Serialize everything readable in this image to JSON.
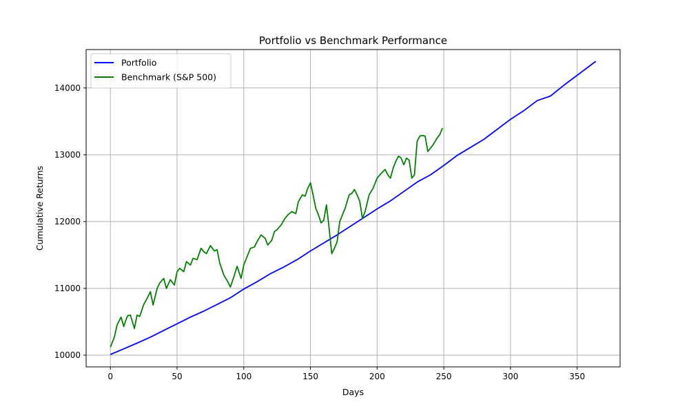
{
  "chart_data": {
    "type": "line",
    "title": "Portfolio vs Benchmark Performance",
    "xlabel": "Days",
    "ylabel": "Cumulative Returns",
    "xlim": [
      -18.2,
      382.2
    ],
    "ylim": [
      9825,
      14575
    ],
    "xticks": [
      0,
      50,
      100,
      150,
      200,
      250,
      300,
      350
    ],
    "yticks": [
      10000,
      11000,
      12000,
      13000,
      14000
    ],
    "grid": true,
    "legend_position": "top-left",
    "series": [
      {
        "name": "Portfolio",
        "color": "#0000ff",
        "x": [
          0,
          10,
          20,
          30,
          40,
          50,
          60,
          70,
          80,
          90,
          100,
          110,
          120,
          130,
          140,
          150,
          160,
          170,
          180,
          190,
          200,
          210,
          220,
          230,
          240,
          250,
          260,
          270,
          280,
          290,
          300,
          310,
          320,
          330,
          340,
          350,
          364
        ],
        "y": [
          10010,
          10095,
          10180,
          10270,
          10370,
          10470,
          10570,
          10660,
          10760,
          10860,
          10990,
          11100,
          11220,
          11320,
          11430,
          11560,
          11680,
          11800,
          11930,
          12060,
          12190,
          12310,
          12450,
          12590,
          12700,
          12840,
          12990,
          13110,
          13230,
          13380,
          13530,
          13660,
          13810,
          13880,
          14040,
          14190,
          14400
        ]
      },
      {
        "name": "Benchmark (S&P 500)",
        "color": "#008000",
        "x": [
          0,
          3,
          5,
          8,
          10,
          12,
          13,
          15,
          18,
          20,
          22,
          25,
          27,
          30,
          32,
          35,
          37,
          40,
          42,
          45,
          48,
          50,
          52,
          55,
          57,
          60,
          62,
          65,
          68,
          70,
          72,
          75,
          78,
          80,
          82,
          85,
          88,
          90,
          93,
          95,
          98,
          100,
          103,
          105,
          108,
          110,
          113,
          116,
          118,
          121,
          123,
          125,
          128,
          131,
          133,
          136,
          139,
          141,
          144,
          146,
          148,
          150,
          152,
          154,
          156,
          158,
          160,
          162,
          164,
          166,
          168,
          170,
          172,
          174,
          176,
          179,
          181,
          183,
          185,
          187,
          189,
          191,
          194,
          197,
          200,
          203,
          206,
          208,
          210,
          212,
          214,
          216,
          218,
          220,
          222,
          224,
          226,
          228,
          230,
          232,
          234,
          236,
          238,
          240,
          242,
          245,
          247,
          249
        ],
        "y": [
          10120,
          10270,
          10450,
          10570,
          10430,
          10550,
          10590,
          10600,
          10400,
          10600,
          10580,
          10760,
          10830,
          10950,
          10750,
          11000,
          11080,
          11150,
          11000,
          11130,
          11050,
          11250,
          11300,
          11250,
          11400,
          11350,
          11450,
          11430,
          11600,
          11550,
          11520,
          11640,
          11560,
          11580,
          11380,
          11200,
          11100,
          11020,
          11200,
          11330,
          11150,
          11350,
          11500,
          11600,
          11620,
          11700,
          11800,
          11750,
          11650,
          11720,
          11850,
          11880,
          11950,
          12050,
          12100,
          12150,
          12120,
          12300,
          12400,
          12380,
          12500,
          12580,
          12400,
          12200,
          12100,
          11980,
          12020,
          12250,
          11900,
          11520,
          11600,
          11700,
          12000,
          12100,
          12200,
          12400,
          12420,
          12480,
          12400,
          12300,
          12050,
          12150,
          12400,
          12500,
          12650,
          12720,
          12780,
          12700,
          12650,
          12800,
          12900,
          12980,
          12950,
          12850,
          12950,
          12920,
          12650,
          12700,
          13200,
          13280,
          13290,
          13280,
          13050,
          13100,
          13150,
          13250,
          13300,
          13400
        ]
      }
    ]
  }
}
